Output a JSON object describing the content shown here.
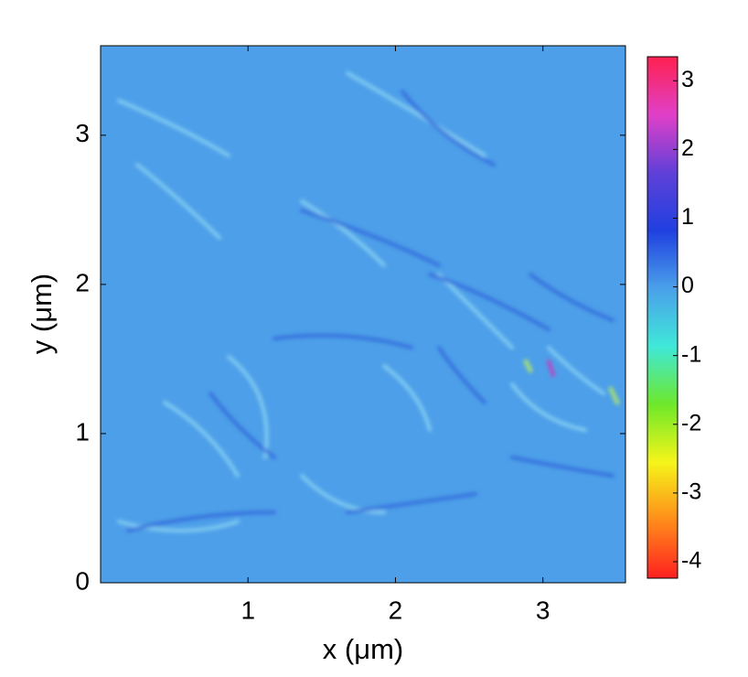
{
  "chart_data": {
    "type": "heatmap",
    "xlabel": "x (μm)",
    "ylabel": "y (μm)",
    "xlim": [
      0,
      3.56
    ],
    "xticks": [
      1,
      2,
      3
    ],
    "ylim": [
      0,
      3.6
    ],
    "yticks": [
      0,
      1,
      2,
      3
    ],
    "colorbar": {
      "clim": [
        -4.24,
        3.35
      ],
      "ticks": [
        3,
        2,
        1,
        0,
        -1,
        -2,
        -3,
        -4
      ],
      "colormap": [
        "#ff2020",
        "#ff8c1a",
        "#f5f51a",
        "#6ee82a",
        "#3fe8d8",
        "#4aa0ea",
        "#2040e0",
        "#6040d8",
        "#e040c8",
        "#ff2050"
      ]
    }
  }
}
